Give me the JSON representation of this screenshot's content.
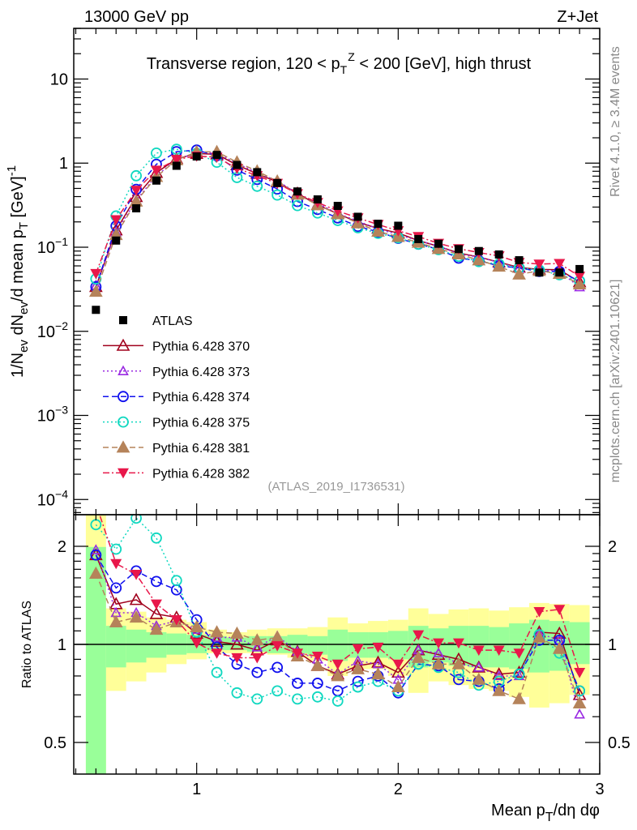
{
  "header": {
    "left": "13000 GeV pp",
    "right": "Z+Jet"
  },
  "side_text": {
    "rivet": "Rivet 4.1.0, ≥ 3.4M events",
    "mcplots": "mcplots.cern.ch [arXiv:2401.10621]"
  },
  "chart_data": {
    "type": "scatter",
    "title": "Transverse region, 120 < p_T^Z < 200 [GeV], high thrust",
    "title_parts": {
      "pre": "Transverse region, 120 < p",
      "sub": "T",
      "sup": "Z",
      "post": " < 200 [GeV], high thrust"
    },
    "watermark": "(ATLAS_2019_I1736531)",
    "xlabel": "Mean p_T/dη dφ",
    "xlabel_parts": {
      "pre": "Mean p",
      "sub": "T",
      "post": "/dη dφ"
    },
    "ylabel": "1/N_ev dN_ev/d mean p_T [GeV]^-1",
    "ylabel_parts": {
      "a": "1/N",
      "a_sub": "ev",
      "b": " dN",
      "b_sub": "ev",
      "c": "/d mean p",
      "c_sub": "T",
      "d": " [GeV]",
      "d_sup": "-1"
    },
    "ratio_ylabel": "Ratio to ATLAS",
    "xlim": [
      0.39,
      3.0
    ],
    "ylim": [
      6.6e-05,
      40
    ],
    "ratio_ylim": [
      0.4,
      2.5
    ],
    "yscale": "log",
    "x_ticks": [
      {
        "v": 1,
        "label": "1"
      },
      {
        "v": 2,
        "label": "2"
      },
      {
        "v": 3,
        "label": "3"
      }
    ],
    "y_ticks": [
      {
        "v": 10,
        "label": "10"
      },
      {
        "v": 1,
        "label": "1"
      },
      {
        "v": 0.1,
        "base": "10",
        "exp": "−1"
      },
      {
        "v": 0.01,
        "base": "10",
        "exp": "−2"
      },
      {
        "v": 0.001,
        "base": "10",
        "exp": "−3"
      },
      {
        "v": 0.0001,
        "base": "10",
        "exp": "−4"
      }
    ],
    "ratio_ticks": [
      {
        "v": 2,
        "label": "2"
      },
      {
        "v": 1,
        "label": "1"
      },
      {
        "v": 0.5,
        "label": "0.5"
      }
    ],
    "legend_position": "middle-left",
    "x": [
      0.5,
      0.6,
      0.7,
      0.8,
      0.9,
      1.0,
      1.1,
      1.2,
      1.3,
      1.4,
      1.5,
      1.6,
      1.7,
      1.8,
      1.9,
      2.0,
      2.1,
      2.2,
      2.3,
      2.4,
      2.5,
      2.6,
      2.7,
      2.8,
      2.9
    ],
    "bin_width": 0.1,
    "data": {
      "name": "ATLAS",
      "color": "#000000",
      "values": [
        0.018,
        0.12,
        0.29,
        0.62,
        0.93,
        1.2,
        1.25,
        0.95,
        0.78,
        0.58,
        0.46,
        0.37,
        0.31,
        0.23,
        0.19,
        0.18,
        0.125,
        0.11,
        0.095,
        0.09,
        0.082,
        0.07,
        0.05,
        0.05,
        0.055
      ],
      "band_total": [
        [
          0.4,
          2.6
        ],
        [
          0.72,
          1.29
        ],
        [
          0.77,
          1.26
        ],
        [
          0.82,
          1.21
        ],
        [
          0.87,
          1.19
        ],
        [
          0.9,
          1.17
        ],
        [
          0.94,
          1.11
        ],
        [
          0.94,
          1.09
        ],
        [
          0.94,
          1.11
        ],
        [
          0.93,
          1.12
        ],
        [
          0.91,
          1.12
        ],
        [
          0.89,
          1.13
        ],
        [
          0.8,
          1.21
        ],
        [
          0.84,
          1.16
        ],
        [
          0.84,
          1.18
        ],
        [
          0.8,
          1.19
        ],
        [
          0.71,
          1.29
        ],
        [
          0.77,
          1.24
        ],
        [
          0.75,
          1.28
        ],
        [
          0.73,
          1.29
        ],
        [
          0.72,
          1.27
        ],
        [
          0.69,
          1.3
        ],
        [
          0.64,
          1.34
        ],
        [
          0.66,
          1.33
        ],
        [
          0.7,
          1.32
        ]
      ],
      "band_stat": [
        [
          0.4,
          1.99
        ],
        [
          0.85,
          1.14
        ],
        [
          0.88,
          1.11
        ],
        [
          0.91,
          1.09
        ],
        [
          0.93,
          1.08
        ],
        [
          0.94,
          1.07
        ],
        [
          0.96,
          1.06
        ],
        [
          0.96,
          1.05
        ],
        [
          0.95,
          1.06
        ],
        [
          0.94,
          1.06
        ],
        [
          0.94,
          1.07
        ],
        [
          0.93,
          1.06
        ],
        [
          0.89,
          1.11
        ],
        [
          0.91,
          1.09
        ],
        [
          0.91,
          1.09
        ],
        [
          0.9,
          1.1
        ],
        [
          0.85,
          1.14
        ],
        [
          0.88,
          1.12
        ],
        [
          0.86,
          1.14
        ],
        [
          0.85,
          1.14
        ],
        [
          0.85,
          1.13
        ],
        [
          0.84,
          1.16
        ],
        [
          0.82,
          1.19
        ],
        [
          0.83,
          1.18
        ],
        [
          0.87,
          1.17
        ]
      ],
      "band_colors": {
        "total": "#ffff99",
        "stat": "#99ff99"
      }
    },
    "series": [
      {
        "name": "Pythia 6.428 370",
        "color": "#a0001c",
        "marker": "triangle-open",
        "dash": "",
        "ratio": [
          1.88,
          1.33,
          1.37,
          1.24,
          1.21,
          1.08,
          1.02,
          1.0,
          0.96,
          1.03,
          0.95,
          0.86,
          0.81,
          0.86,
          0.88,
          0.82,
          0.96,
          0.93,
          0.9,
          0.85,
          0.81,
          0.82,
          1.09,
          1.08,
          0.7
        ]
      },
      {
        "name": "Pythia 6.428 373",
        "color": "#9a2be2",
        "marker": "triangle-open-small",
        "dash": "2,3",
        "ratio": [
          1.95,
          1.25,
          1.25,
          1.14,
          1.18,
          1.11,
          1.05,
          1.05,
          0.98,
          1.06,
          0.95,
          0.9,
          0.81,
          0.89,
          0.87,
          0.78,
          0.96,
          0.94,
          0.87,
          0.85,
          0.8,
          0.8,
          1.08,
          1.03,
          0.61
        ]
      },
      {
        "name": "Pythia 6.428 374",
        "color": "#1010ee",
        "marker": "circle-open",
        "dash": "7,4",
        "ratio": [
          1.88,
          1.49,
          1.68,
          1.56,
          1.47,
          1.19,
          0.98,
          0.87,
          0.82,
          0.85,
          0.76,
          0.76,
          0.72,
          0.77,
          0.8,
          0.71,
          0.87,
          0.86,
          0.78,
          0.77,
          0.73,
          0.81,
          1.03,
          1.03,
          0.72
        ]
      },
      {
        "name": "Pythia 6.428 375",
        "color": "#10d8c0",
        "marker": "circle-open",
        "dash": "2,3",
        "ratio": [
          2.33,
          1.96,
          2.44,
          2.12,
          1.57,
          1.09,
          0.82,
          0.71,
          0.68,
          0.72,
          0.68,
          0.69,
          0.67,
          0.74,
          0.77,
          0.72,
          0.87,
          0.85,
          0.82,
          0.75,
          0.77,
          0.81,
          1.07,
          0.94,
          0.72
        ]
      },
      {
        "name": "Pythia 6.428 381",
        "color": "#b5835a",
        "marker": "triangle-filled",
        "dash": "7,4",
        "ratio": [
          1.65,
          1.17,
          1.21,
          1.11,
          1.17,
          1.13,
          1.09,
          1.08,
          1.03,
          1.05,
          0.92,
          0.86,
          0.8,
          0.84,
          0.81,
          0.74,
          0.91,
          0.87,
          0.87,
          0.78,
          0.72,
          0.68,
          1.05,
          0.97,
          0.66
        ]
      },
      {
        "name": "Pythia 6.428 382",
        "color": "#e8174a",
        "marker": "triangle-down-filled",
        "dash": "8,3,2,3",
        "ratio": [
          2.7,
          1.77,
          1.64,
          1.33,
          1.19,
          1.01,
          0.94,
          0.91,
          0.91,
          0.99,
          0.94,
          0.92,
          0.87,
          0.97,
          0.98,
          0.87,
          1.07,
          1.01,
          1.01,
          0.96,
          0.96,
          0.94,
          1.26,
          1.28,
          0.82
        ]
      }
    ]
  }
}
